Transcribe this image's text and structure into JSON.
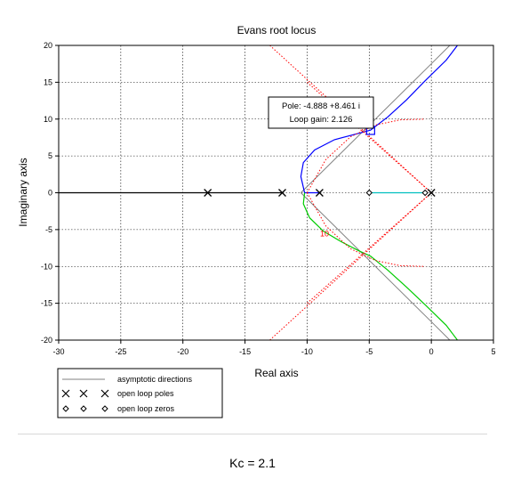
{
  "chart_data": {
    "type": "line",
    "title": "Evans root locus",
    "xlabel": "Real axis",
    "ylabel": "Imaginary axis",
    "xlim": [
      -30,
      5
    ],
    "ylim": [
      -20,
      20
    ],
    "xticks": [
      -30,
      -25,
      -20,
      -15,
      -10,
      -5,
      0,
      5
    ],
    "yticks": [
      -20,
      -15,
      -10,
      -5,
      0,
      5,
      10,
      15,
      20
    ],
    "grid": true,
    "legend_position": "below-left",
    "colors": {
      "asymptote": "#808080",
      "branch_upper": "#0000ff",
      "branch_lower": "#00cc00",
      "real_axis_branch": "#000000",
      "zero_branch": "#00bfbf",
      "damping": "#ff0000",
      "marker": "#000000"
    },
    "open_loop_poles": [
      [
        -18,
        0
      ],
      [
        -12,
        0
      ],
      [
        -9,
        0
      ],
      [
        0,
        0
      ]
    ],
    "open_loop_zeros": [
      [
        -5,
        0
      ],
      [
        -0.5,
        0
      ]
    ],
    "series": [
      {
        "name": "asymptotic directions",
        "style": "asymptote",
        "lines": [
          {
            "x": [
              -10.5,
              0,
              2.5
            ],
            "y": [
              0,
              17.5,
              21.7
            ]
          },
          {
            "x": [
              -10.5,
              0,
              2.5
            ],
            "y": [
              0,
              -17.5,
              -21.7
            ]
          }
        ]
      },
      {
        "style": "branch_upper",
        "x": [
          -9,
          -9.6,
          -10.2,
          -10.5,
          -10.3,
          -9.4,
          -7.8,
          -6.0,
          -4.9,
          -3.5,
          -2.0,
          -0.5,
          1.2,
          2.1
        ],
        "y": [
          0,
          0,
          0,
          2.2,
          4.1,
          5.8,
          7.2,
          8.0,
          8.5,
          10.3,
          12.6,
          15.2,
          18.0,
          20.0
        ]
      },
      {
        "style": "branch_lower",
        "x": [
          -10.2,
          -10.3,
          -9.8,
          -8.7,
          -7.2,
          -5.8,
          -4.9,
          -3.5,
          -2.0,
          -0.5,
          1.2,
          2.1
        ],
        "y": [
          0,
          -1.5,
          -3.4,
          -5.2,
          -6.7,
          -7.9,
          -8.6,
          -10.5,
          -12.8,
          -15.2,
          -18.0,
          -20.0
        ]
      },
      {
        "style": "real_axis_branch",
        "x": [
          -30,
          -12
        ],
        "y": [
          0,
          0
        ]
      },
      {
        "style": "zero_branch",
        "x": [
          -5,
          -0.5
        ],
        "y": [
          0,
          0
        ]
      },
      {
        "style": "damping",
        "lines": [
          {
            "x": [
              -13,
              0
            ],
            "y": [
              20,
              0
            ]
          },
          {
            "x": [
              -13,
              0
            ],
            "y": [
              -20,
              0
            ]
          },
          {
            "x": [
              -10,
              0
            ],
            "y": [
              -15,
              0
            ]
          },
          {
            "x": [
              -10,
              0
            ],
            "y": [
              15,
              0
            ]
          },
          {
            "x": [
              -10,
              -8.5,
              -6.5,
              -4.5,
              -2.5,
              -0.5
            ],
            "y": [
              0,
              4.5,
              7.6,
              9.2,
              9.9,
              10
            ]
          },
          {
            "x": [
              -10,
              -8.5,
              -6.5,
              -4.5,
              -2.5,
              -0.5
            ],
            "y": [
              0,
              -4.5,
              -7.6,
              -9.2,
              -9.9,
              -10
            ]
          }
        ]
      }
    ],
    "annotations": [
      {
        "text": "10",
        "x": -8.6,
        "y": -5.9,
        "color": "#ff0000"
      }
    ],
    "datatip": {
      "point": [
        -4.888,
        8.461
      ],
      "line1": "Pole: -4.888 +8.461 i",
      "line2": "Loop gain: 2.126"
    },
    "legend": [
      {
        "symbol": "line",
        "label": "asymptotic directions"
      },
      {
        "symbol": "x-marker",
        "label": "open loop poles"
      },
      {
        "symbol": "diamond-marker",
        "label": "open loop zeros"
      }
    ]
  },
  "caption": "Kc = 2.1"
}
